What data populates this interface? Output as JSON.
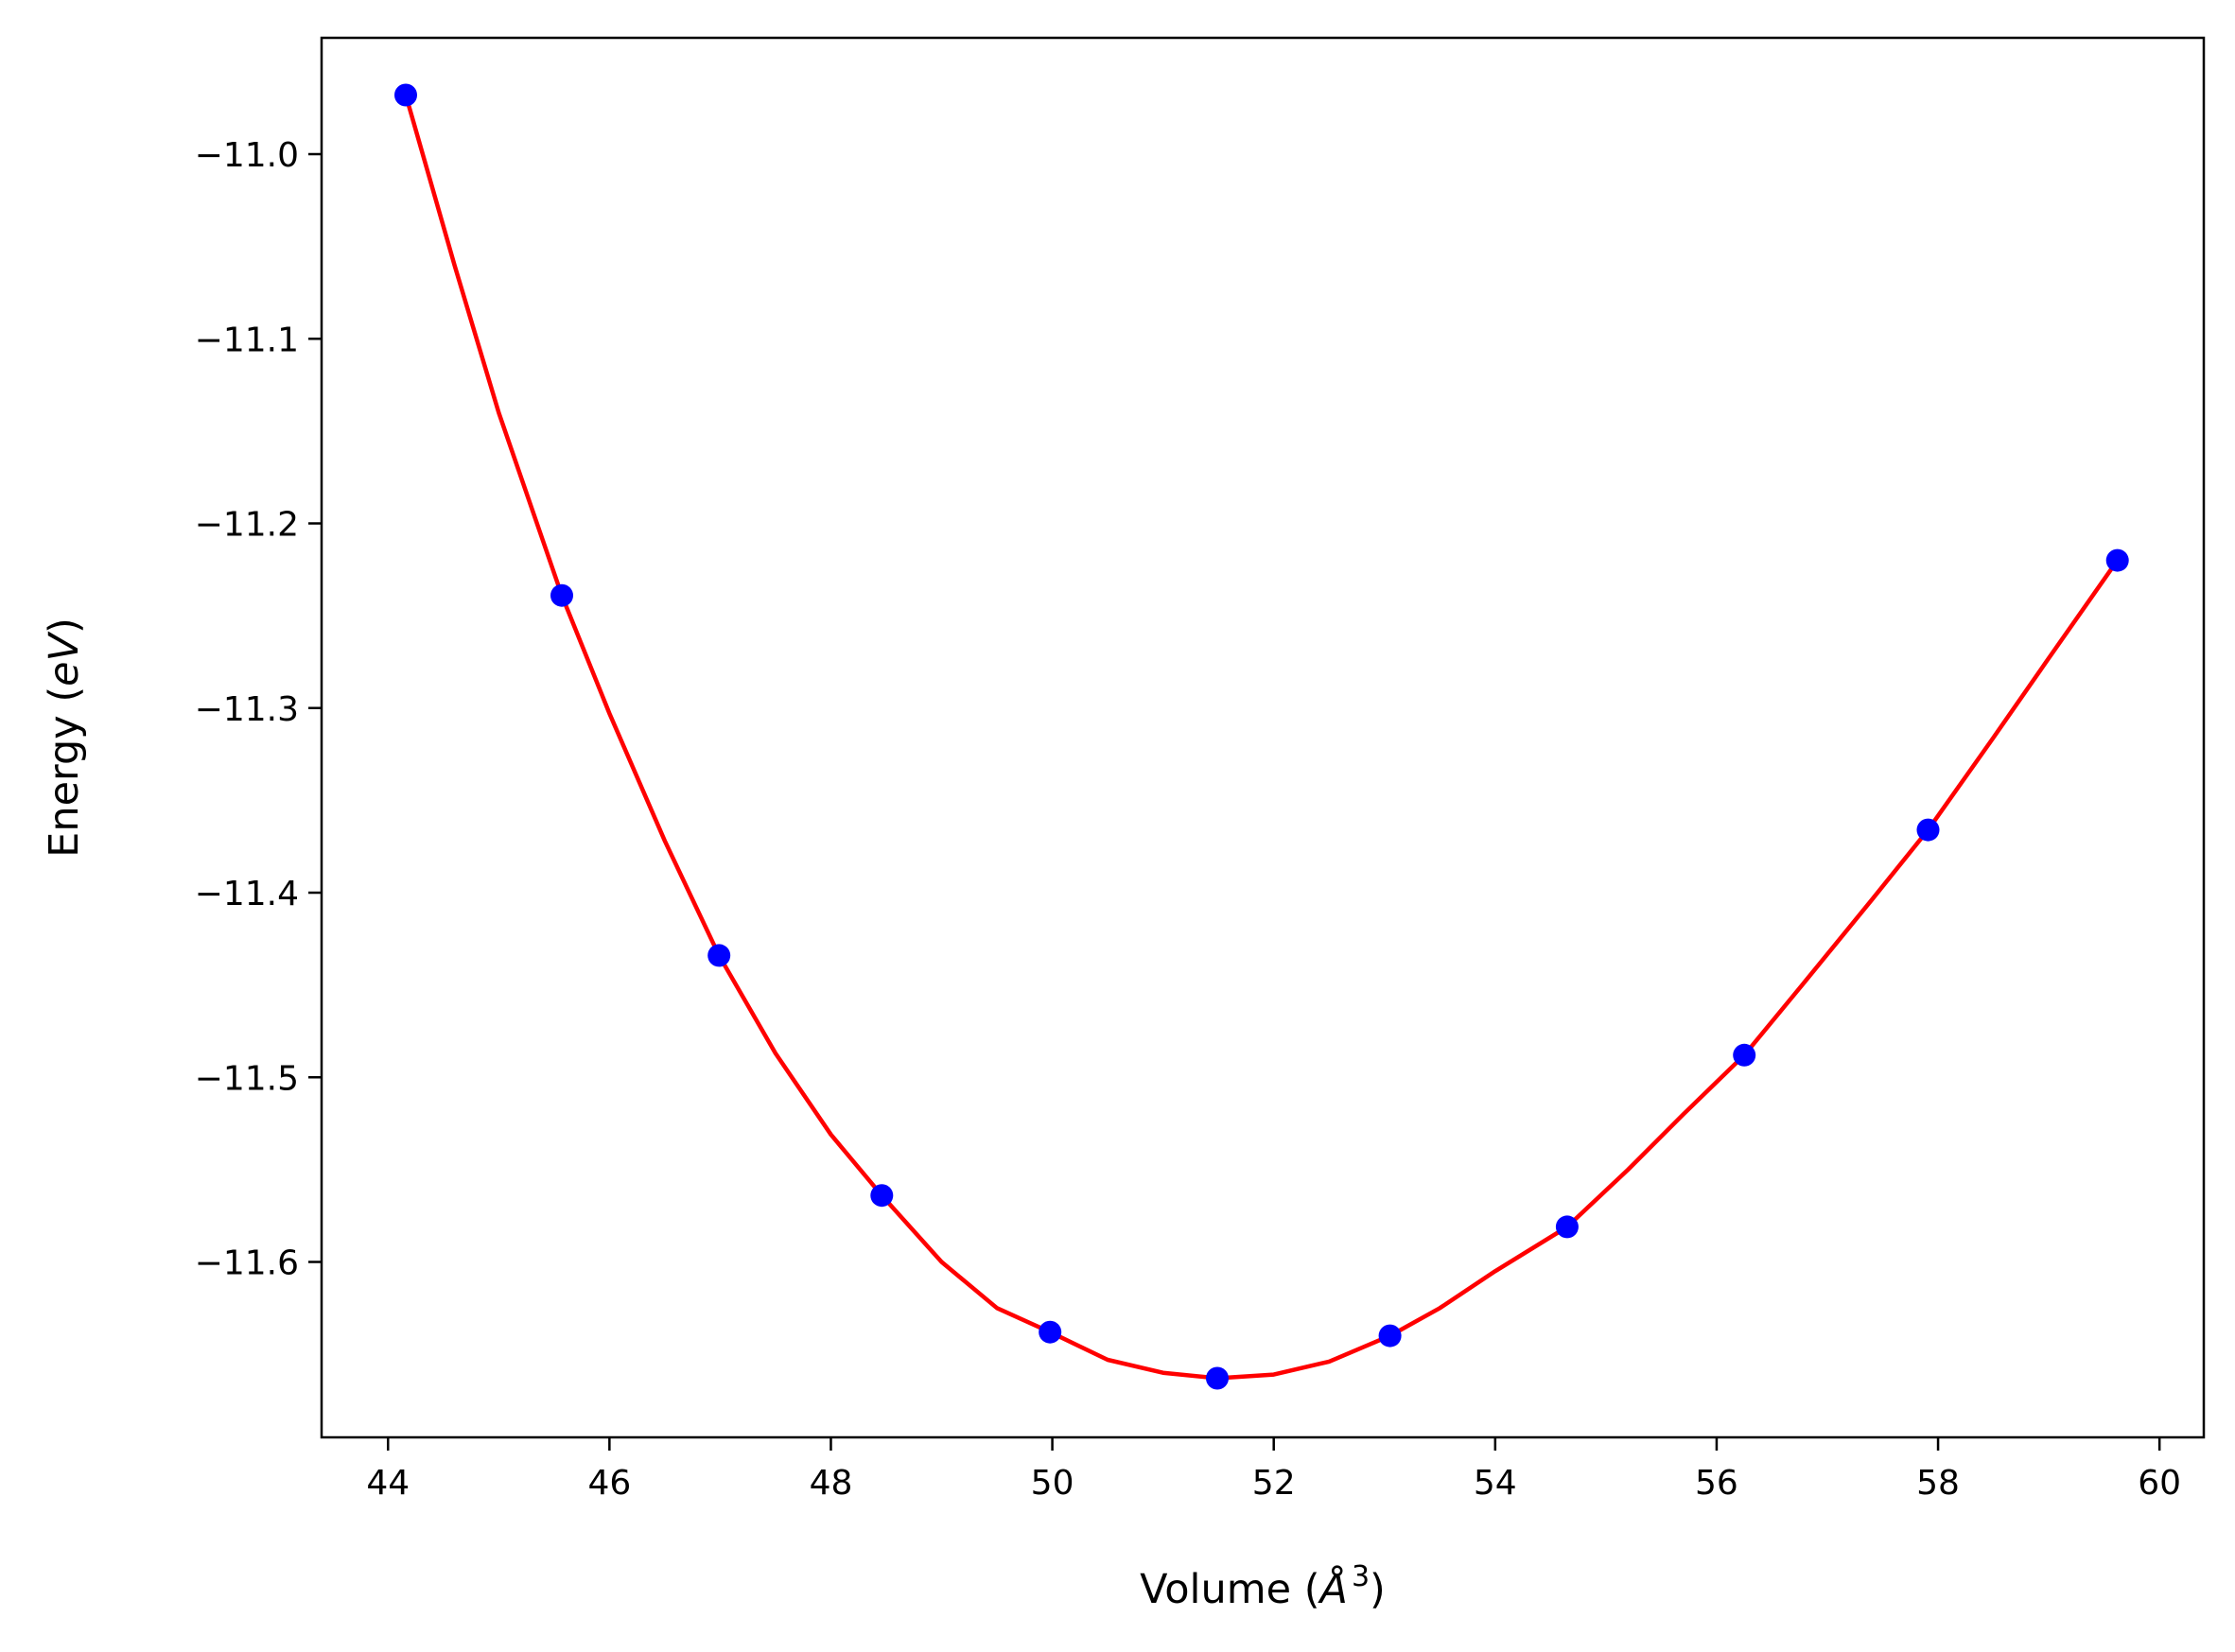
{
  "chart_data": {
    "type": "line",
    "title": "",
    "xlabel": {
      "text": "Volume (",
      "italic": "Å",
      "superscript": "3",
      "suffix": ")"
    },
    "ylabel": {
      "text": "Energy (",
      "italic": "eV",
      "suffix": ")"
    },
    "xlim": [
      43.4,
      60.4
    ],
    "ylim": [
      -11.695,
      -10.937
    ],
    "xticks": [
      44,
      46,
      48,
      50,
      52,
      54,
      56,
      58,
      60
    ],
    "xtick_labels": [
      "44",
      "46",
      "48",
      "50",
      "52",
      "54",
      "56",
      "58",
      "60"
    ],
    "yticks": [
      -11.6,
      -11.5,
      -11.4,
      -11.3,
      -11.2,
      -11.1,
      -11.0
    ],
    "ytick_labels": [
      "−11.6",
      "−11.5",
      "−11.4",
      "−11.3",
      "−11.2",
      "−11.1",
      "−11.0"
    ],
    "grid": false,
    "legend": "none",
    "series": [
      {
        "kind": "scatter",
        "color": "#0000ff",
        "x": [
          44.16,
          45.57,
          46.99,
          48.46,
          49.98,
          51.49,
          53.05,
          54.65,
          56.25,
          57.91,
          59.62
        ],
        "y": [
          -10.968,
          -11.239,
          -11.434,
          -11.564,
          -11.638,
          -11.663,
          -11.64,
          -11.581,
          -11.488,
          -11.366,
          -11.22
        ]
      },
      {
        "kind": "line",
        "color": "#ff0000",
        "x": [
          44.16,
          44.6,
          45.0,
          45.57,
          46.0,
          46.5,
          46.99,
          47.5,
          48.0,
          48.46,
          49.0,
          49.5,
          49.98,
          50.5,
          51.0,
          51.49,
          52.0,
          52.5,
          53.05,
          53.5,
          54.0,
          54.65,
          55.2,
          55.7,
          56.25,
          56.8,
          57.4,
          57.91,
          58.5,
          59.0,
          59.62
        ],
        "y": [
          -10.968,
          -11.06,
          -11.14,
          -11.239,
          -11.303,
          -11.372,
          -11.434,
          -11.487,
          -11.531,
          -11.564,
          -11.6,
          -11.625,
          -11.638,
          -11.653,
          -11.66,
          -11.663,
          -11.661,
          -11.654,
          -11.64,
          -11.625,
          -11.605,
          -11.581,
          -11.55,
          -11.52,
          -11.488,
          -11.448,
          -11.404,
          -11.366,
          -11.316,
          -11.273,
          -11.22
        ]
      }
    ]
  }
}
